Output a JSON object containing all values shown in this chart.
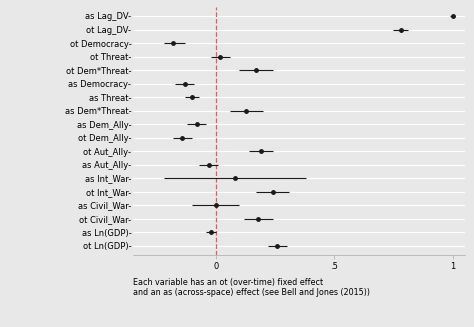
{
  "labels": [
    "as Lag_DV-",
    "ot Lag_DV-",
    "ot Democracy-",
    "ot Threat-",
    "ot Dem*Threat-",
    "as Democracy-",
    "as Threat-",
    "as Dem*Threat-",
    "as Dem_Ally-",
    "ot Dem_Ally-",
    "ot Aut_Ally-",
    "as Aut_Ally-",
    "as Int_War-",
    "ot Int_War-",
    "as Civil_War-",
    "ot Civil_War-",
    "as Ln(GDP)-",
    "ot Ln(GDP)-"
  ],
  "estimates": [
    1.0,
    0.78,
    -0.18,
    0.02,
    0.17,
    -0.13,
    -0.1,
    0.13,
    -0.08,
    -0.14,
    0.19,
    -0.03,
    0.08,
    0.24,
    0.0,
    0.18,
    -0.02,
    0.26
  ],
  "ci_low": [
    0.99,
    0.75,
    -0.22,
    -0.02,
    0.1,
    -0.17,
    -0.13,
    0.06,
    -0.12,
    -0.18,
    0.14,
    -0.07,
    -0.22,
    0.17,
    -0.1,
    0.12,
    -0.04,
    0.22
  ],
  "ci_high": [
    1.01,
    0.81,
    -0.13,
    0.06,
    0.24,
    -0.09,
    -0.07,
    0.2,
    -0.04,
    -0.1,
    0.24,
    0.01,
    0.38,
    0.31,
    0.1,
    0.24,
    0.0,
    0.3
  ],
  "vline_x": 0,
  "xlim": [
    -0.35,
    1.05
  ],
  "xticks": [
    0,
    0.5,
    1
  ],
  "xtick_labels": [
    "0",
    ".5",
    "1"
  ],
  "xlabel": "Each variable has an ot (over-time) fixed effect\nand an as (across-space) effect (see Bell and Jones (2015))",
  "bg_color": "#e8e8e8",
  "point_color": "#1a1a1a",
  "line_color": "#1a1a1a",
  "vline_color": "#e05c5c",
  "grid_color": "#ffffff",
  "font_size": 6.0,
  "xlabel_font_size": 5.8
}
